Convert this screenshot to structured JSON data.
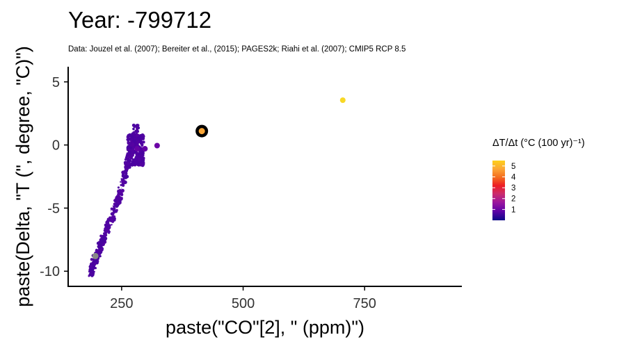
{
  "chart_data": {
    "type": "scatter",
    "title": "Year: -799712",
    "subtitle": "Data: Jouzel et al. (2007); Bereiter et al., (2015); PAGES2k; Riahi et al. (2007); CMIP5 RCP 8.5",
    "xlabel": "paste(\"CO\"[2], \" (ppm)\")",
    "ylabel": "paste(Delta, \"T (\", degree, \"C)\")",
    "xlim": [
      140,
      950
    ],
    "ylim": [
      -11.2,
      6.2
    ],
    "x_ticks": [
      250,
      500,
      750
    ],
    "y_ticks": [
      5,
      0,
      -5,
      -10
    ],
    "x_tick_labels": [
      "250",
      "500",
      "750"
    ],
    "y_tick_labels": [
      "5",
      "0",
      "-5",
      "-10"
    ],
    "grid": false,
    "legend": {
      "title": "ΔT/Δt (°C (100 yr)⁻¹)",
      "placement": "right",
      "range": [
        0,
        5.5
      ],
      "ticks": [
        1,
        2,
        3,
        4,
        5
      ],
      "tick_labels": [
        "1",
        "2",
        "3",
        "4",
        "5"
      ]
    },
    "colorscale": [
      "#0d0887",
      "#4b03a1",
      "#7d03a8",
      "#b12a90",
      "#e23028",
      "#f89540",
      "#fdc527",
      "#f0f921"
    ],
    "highlighted_point": {
      "x": 415,
      "y": 1.1,
      "rate": 4.2
    },
    "grey_point": {
      "x": 196,
      "y": -8.8
    },
    "notable_points": [
      {
        "x": 705,
        "y": 3.55,
        "rate": 5.0
      },
      {
        "x": 323,
        "y": -0.05,
        "rate": 1.3
      },
      {
        "x": 298,
        "y": -0.3,
        "rate": 1.2
      },
      {
        "x": 282,
        "y": -0.3,
        "rate": 1.2
      }
    ],
    "cluster_ridge": [
      [
        185,
        -10.2,
        0.8
      ],
      [
        188,
        -9.9,
        0.8
      ],
      [
        190,
        -9.6,
        0.8
      ],
      [
        193,
        -9.3,
        0.8
      ],
      [
        196,
        -9.0,
        0.8
      ],
      [
        200,
        -8.6,
        0.85
      ],
      [
        204,
        -8.2,
        0.85
      ],
      [
        208,
        -7.8,
        0.85
      ],
      [
        212,
        -7.4,
        0.85
      ],
      [
        217,
        -7.0,
        0.9
      ],
      [
        222,
        -6.5,
        0.9
      ],
      [
        228,
        -5.9,
        0.9
      ],
      [
        234,
        -5.3,
        0.9
      ],
      [
        240,
        -4.6,
        0.9
      ],
      [
        245,
        -4.0,
        0.9
      ],
      [
        250,
        -3.3,
        0.9
      ],
      [
        255,
        -2.6,
        0.85
      ],
      [
        259,
        -2.0,
        0.85
      ],
      [
        263,
        -1.3,
        0.85
      ],
      [
        266,
        -0.8,
        0.85
      ],
      [
        270,
        -0.3,
        0.85
      ],
      [
        273,
        0.1,
        0.85
      ],
      [
        276,
        0.5,
        0.85
      ],
      [
        278,
        0.9,
        0.85
      ],
      [
        280,
        1.3,
        0.85
      ]
    ]
  }
}
